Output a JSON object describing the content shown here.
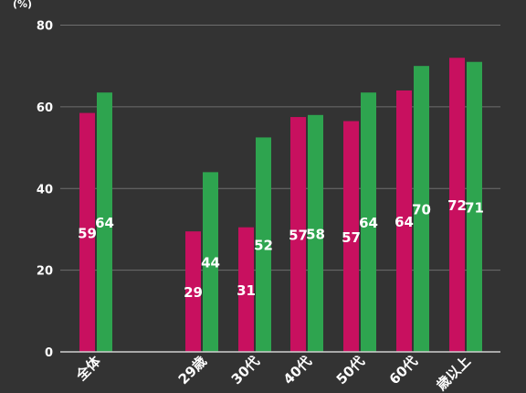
{
  "chart_data": {
    "type": "bar",
    "unit_label": "(%)",
    "categories": [
      "全体",
      "",
      "29歳",
      "30代",
      "40代",
      "50代",
      "60代",
      "歳以上"
    ],
    "series": [
      {
        "color": "#c8105f",
        "values": [
          58.5,
          null,
          29.5,
          30.5,
          57.5,
          56.5,
          64,
          72
        ],
        "labels": [
          "59",
          "",
          "29",
          "31",
          "57",
          "57",
          "64",
          "72"
        ]
      },
      {
        "color": "#2ea44f",
        "values": [
          63.5,
          null,
          44,
          52.5,
          58,
          63.5,
          70,
          71
        ],
        "labels": [
          "64",
          "",
          "44",
          "52",
          "58",
          "64",
          "70",
          "71"
        ]
      }
    ],
    "ylim": [
      0,
      80
    ],
    "yticks": [
      0,
      20,
      40,
      60,
      80
    ],
    "grid": true,
    "background": "#333333"
  }
}
